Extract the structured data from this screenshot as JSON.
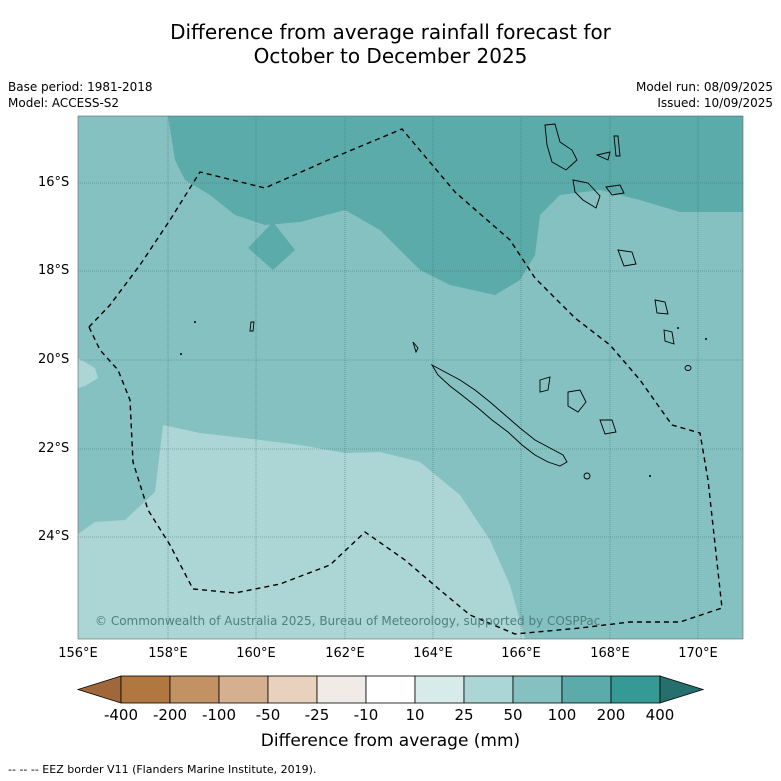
{
  "title": {
    "line1": "Difference from average rainfall forecast for",
    "line2": "October to December 2025"
  },
  "meta": {
    "base_period": "Base period: 1981-2018",
    "model": "Model: ACCESS-S2",
    "model_run": "Model run: 08/09/2025",
    "issued": "Issued: 10/09/2025"
  },
  "axes": {
    "latitudes": [
      "16°S",
      "18°S",
      "20°S",
      "22°S",
      "24°S"
    ],
    "longitudes": [
      "156°E",
      "158°E",
      "160°E",
      "162°E",
      "164°E",
      "166°E",
      "168°E",
      "170°E"
    ]
  },
  "copyright": "© Commonwealth of Australia 2025, Bureau of Meteorology, supported by COSPPac",
  "colorbar": {
    "title": "Difference from average (mm)",
    "labels": [
      "-400",
      "-200",
      "-100",
      "-50",
      "-25",
      "-10",
      "10",
      "25",
      "50",
      "100",
      "200",
      "400"
    ],
    "colors": [
      "#a0673a",
      "#b07840",
      "#c29264",
      "#d4b090",
      "#e8d2be",
      "#f1ebe7",
      "#ffffff",
      "#d7ecea",
      "#acd6d5",
      "#84c1c0",
      "#5aabaa",
      "#359995",
      "#256f6c"
    ]
  },
  "map_colors": {
    "band_10_25": "#d7ecea",
    "band_25_50": "#acd6d5",
    "band_50_100": "#84c1c0",
    "band_100_200": "#5aabaa"
  },
  "footnote": "--  --  -- EEZ border V11 (Flanders Marine Institute, 2019)."
}
